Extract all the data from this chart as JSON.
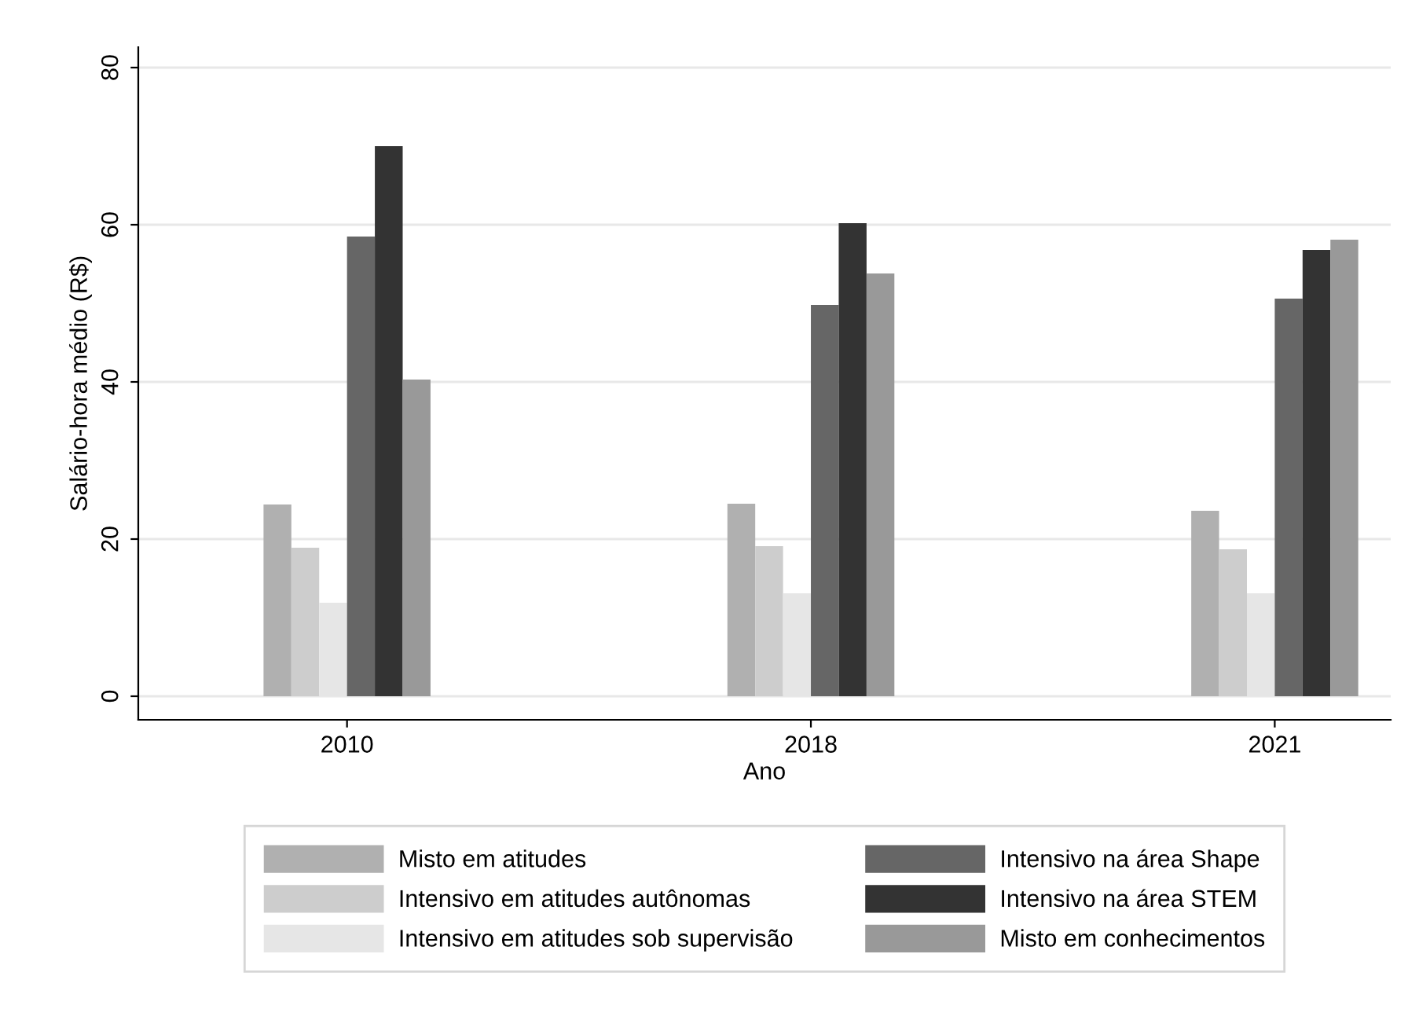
{
  "chart_data": {
    "type": "bar",
    "xlabel": "Ano",
    "ylabel": "Salário-hora médio (R$)",
    "categories": [
      "2010",
      "2018",
      "2021"
    ],
    "series": [
      {
        "name": "Misto em atitudes",
        "color": "#b0b0b0",
        "values": [
          24.4,
          24.5,
          23.6
        ]
      },
      {
        "name": "Intensivo em atitudes autônomas",
        "color": "#cdcdcd",
        "values": [
          18.9,
          19.1,
          18.7
        ]
      },
      {
        "name": "Intensivo em atitudes sob supervisão",
        "color": "#e6e6e6",
        "values": [
          11.9,
          13.1,
          13.1
        ]
      },
      {
        "name": "Intensivo na área Shape",
        "color": "#666666",
        "values": [
          58.5,
          49.8,
          50.6
        ]
      },
      {
        "name": "Intensivo na área STEM",
        "color": "#333333",
        "values": [
          70.0,
          60.2,
          56.8
        ]
      },
      {
        "name": "Misto em conhecimentos",
        "color": "#999999",
        "values": [
          40.3,
          53.8,
          58.1
        ]
      }
    ],
    "ylim": [
      -3,
      82.6
    ],
    "yticks": [
      0,
      20,
      40,
      60,
      80
    ],
    "grid": "y",
    "legend": "bottom"
  }
}
